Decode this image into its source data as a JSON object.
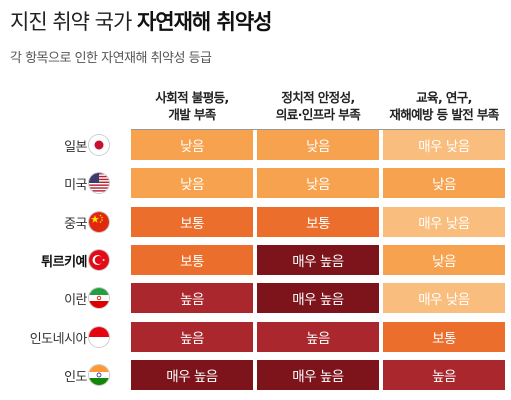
{
  "title": {
    "light": "지진 취약 국가 ",
    "bold": "자연재해 취약성"
  },
  "subtitle": "각 항목으로 인한 자연재해 취약성 등급",
  "colors": {
    "낮음": "#f7a24e",
    "매우 낮음": "#f9be7d",
    "보통": "#ec6e2c",
    "높음": "#a9272d",
    "매우 높음": "#7d141b"
  },
  "chart_data": {
    "type": "table",
    "columns": [
      "사회적 불평등,\n개발 부족",
      "정치적 안정성,\n의료·인프라 부족",
      "교육, 연구,\n재해예방 등 발전 부족"
    ],
    "rows": [
      {
        "country": "일본",
        "flag": "japan-flag-icon",
        "values": [
          "낮음",
          "낮음",
          "매우 낮음"
        ]
      },
      {
        "country": "미국",
        "flag": "usa-flag-icon",
        "values": [
          "낮음",
          "낮음",
          "낮음"
        ]
      },
      {
        "country": "중국",
        "flag": "china-flag-icon",
        "values": [
          "보통",
          "보통",
          "매우 낮음"
        ]
      },
      {
        "country": "튀르키예",
        "flag": "turkey-flag-icon",
        "values": [
          "보통",
          "매우 높음",
          "낮음"
        ]
      },
      {
        "country": "이란",
        "flag": "iran-flag-icon",
        "values": [
          "높음",
          "매우 높음",
          "매우 낮음"
        ]
      },
      {
        "country": "인도네시아",
        "flag": "indonesia-flag-icon",
        "values": [
          "높음",
          "높음",
          "보통"
        ]
      },
      {
        "country": "인도",
        "flag": "india-flag-icon",
        "values": [
          "매우 높음",
          "매우 높음",
          "높음"
        ]
      }
    ]
  }
}
